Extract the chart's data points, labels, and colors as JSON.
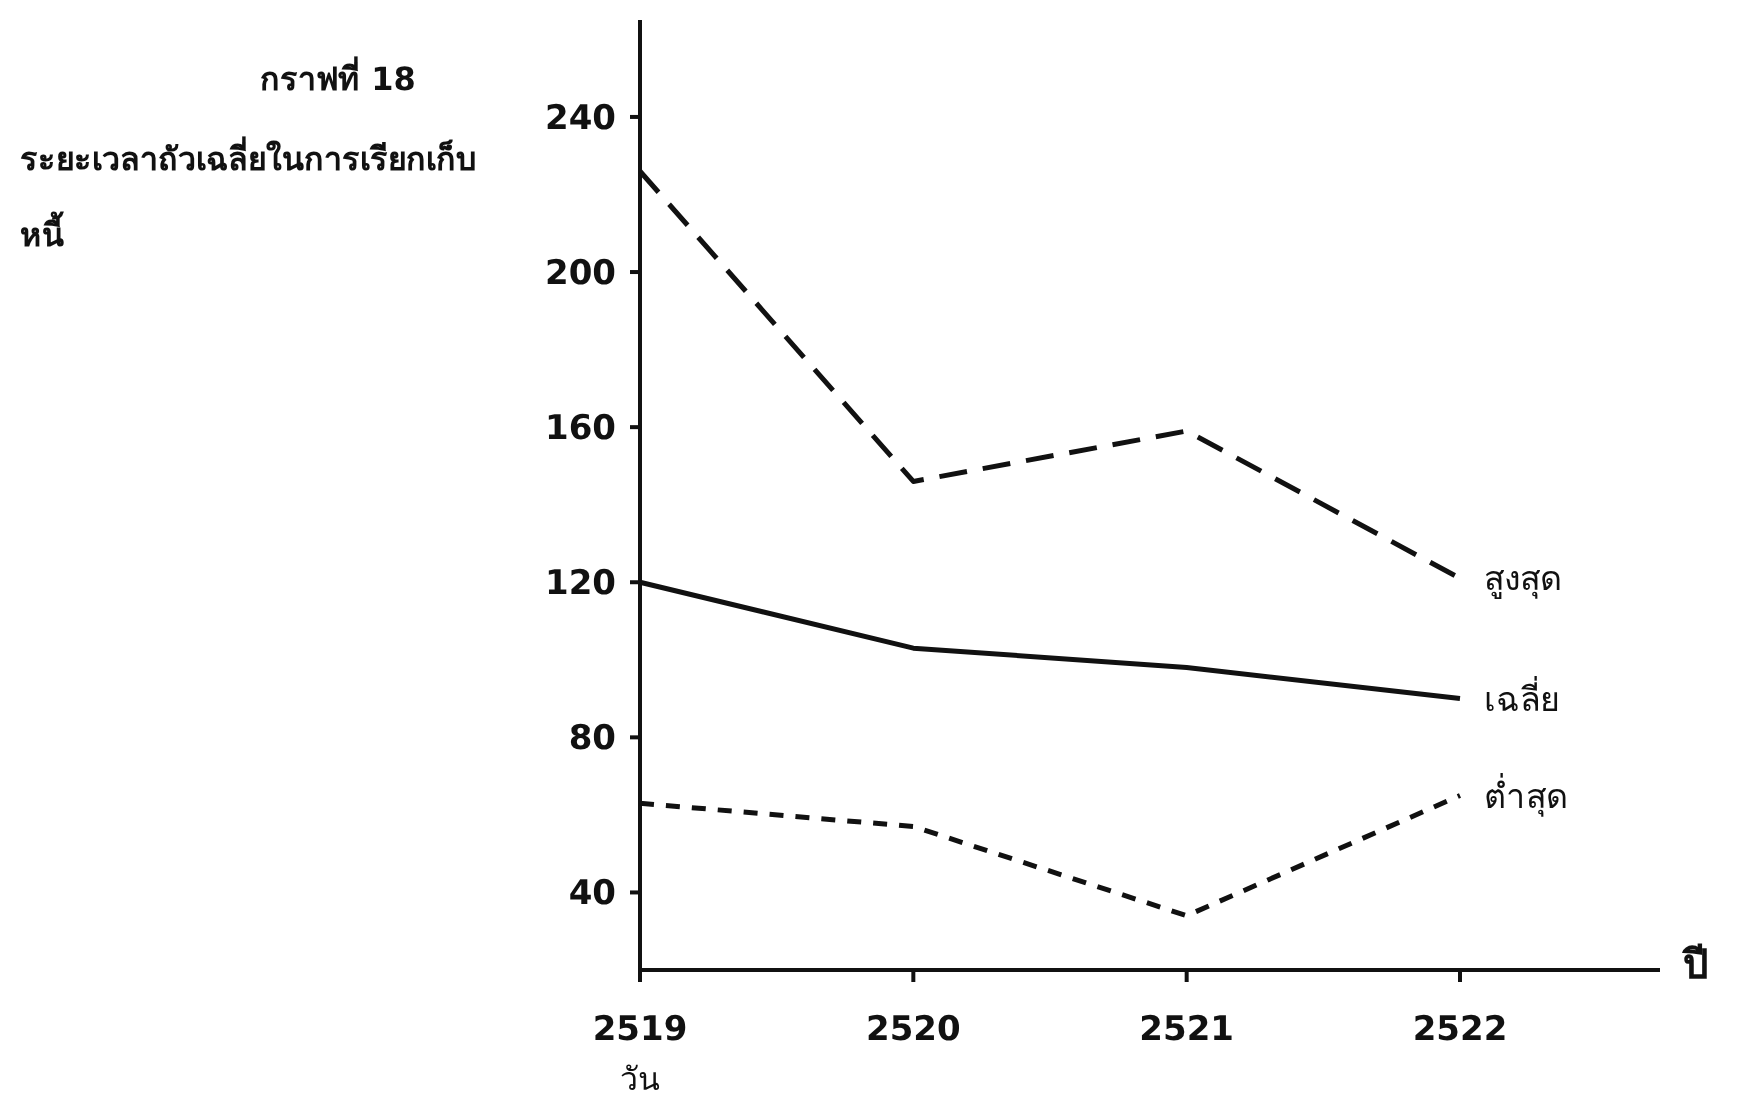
{
  "chart_data": {
    "type": "line",
    "title": "กราฟที่ 18",
    "subtitle": "ระยะเวลาถัวเฉลี่ยในการเรียกเก็บหนี้",
    "ylabel": "วัน",
    "xlabel": "ปี",
    "categories": [
      "2519",
      "2520",
      "2521",
      "2522"
    ],
    "ylim": [
      20,
      265
    ],
    "yticks": [
      40,
      80,
      120,
      160,
      200,
      240
    ],
    "grid": false,
    "legend": false,
    "marker": "none",
    "series": [
      {
        "name": "สูงสุด",
        "color": "#111111",
        "line_style": "dashed",
        "values": [
          226,
          146,
          159,
          121
        ]
      },
      {
        "name": "เฉลี่ย",
        "color": "#111111",
        "line_style": "solid",
        "values": [
          120,
          103,
          98,
          90
        ]
      },
      {
        "name": "ต่ำสุด",
        "color": "#111111",
        "line_style": "dotted",
        "values": [
          63,
          57,
          34,
          65
        ]
      }
    ]
  }
}
